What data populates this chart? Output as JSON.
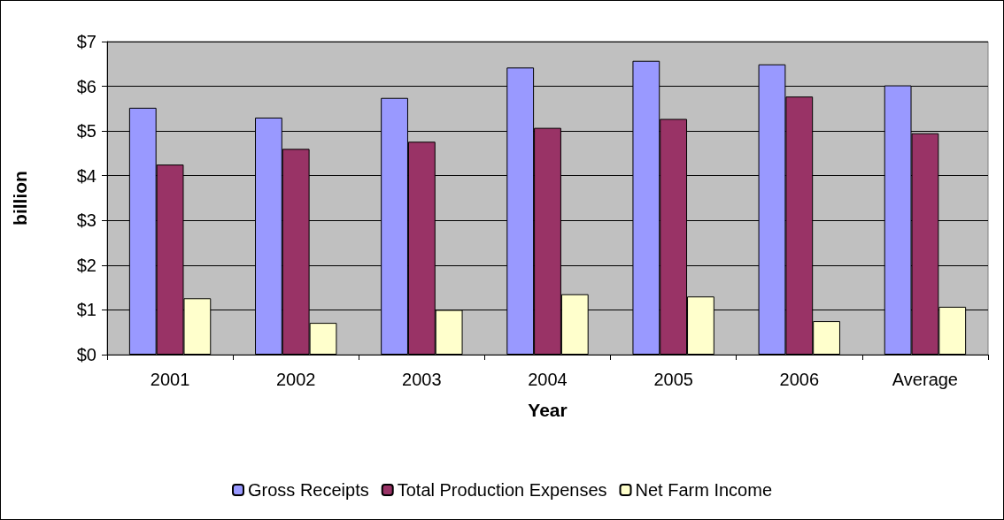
{
  "chart_data": {
    "type": "bar",
    "xlabel": "Year",
    "ylabel": "billion",
    "categories": [
      "2001",
      "2002",
      "2003",
      "2004",
      "2005",
      "2006",
      "Average"
    ],
    "series": [
      {
        "name": "Gross Receipts",
        "color": "#9999ff",
        "values": [
          5.52,
          5.3,
          5.74,
          6.42,
          6.57,
          6.49,
          6.02
        ]
      },
      {
        "name": "Total Production Expenses",
        "color": "#993366",
        "values": [
          4.25,
          4.6,
          4.76,
          5.07,
          5.27,
          5.77,
          4.95
        ]
      },
      {
        "name": "Net Farm Income",
        "color": "#ffffcc",
        "values": [
          1.26,
          0.71,
          1.0,
          1.35,
          1.3,
          0.75,
          1.07
        ]
      }
    ],
    "ylim": [
      0,
      7
    ],
    "yticks": [
      {
        "value": 0,
        "label": "$0"
      },
      {
        "value": 1,
        "label": "$1"
      },
      {
        "value": 2,
        "label": "$2"
      },
      {
        "value": 3,
        "label": "$3"
      },
      {
        "value": 4,
        "label": "$4"
      },
      {
        "value": 5,
        "label": "$5"
      },
      {
        "value": 6,
        "label": "$6"
      },
      {
        "value": 7,
        "label": "$7"
      }
    ],
    "grid": "y",
    "legend": "bottom"
  }
}
